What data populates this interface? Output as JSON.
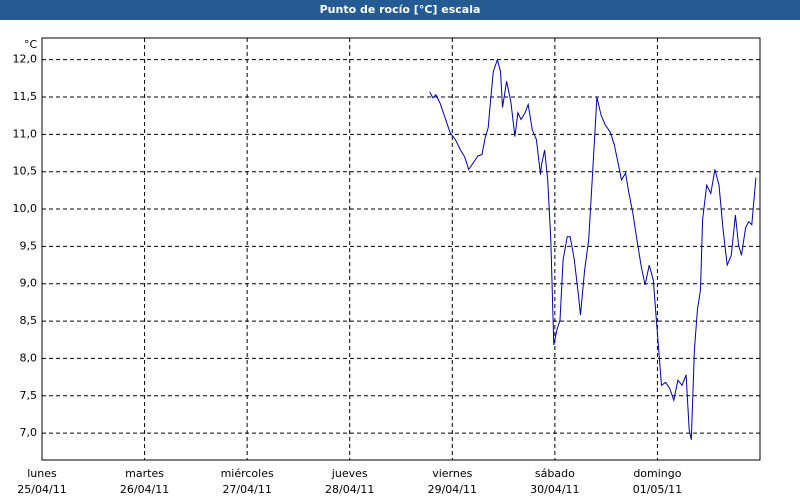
{
  "chart_data": {
    "type": "line",
    "title": "Punto de rocío [°C] escala",
    "y_unit": "°C",
    "x": [
      3.78,
      3.81,
      3.84,
      3.88,
      3.93,
      3.98,
      4.03,
      4.08,
      4.12,
      4.16,
      4.21,
      4.25,
      4.29,
      4.32,
      4.35,
      4.37,
      4.4,
      4.44,
      4.47,
      4.49,
      4.53,
      4.57,
      4.61,
      4.64,
      4.67,
      4.71,
      4.74,
      4.78,
      4.82,
      4.86,
      4.87,
      4.9,
      4.93,
      4.96,
      4.99,
      5.02,
      5.05,
      5.08,
      5.12,
      5.15,
      5.19,
      5.23,
      5.25,
      5.29,
      5.33,
      5.37,
      5.41,
      5.45,
      5.49,
      5.54,
      5.58,
      5.62,
      5.65,
      5.69,
      5.72,
      5.76,
      5.8,
      5.84,
      5.88,
      5.92,
      5.96,
      5.99,
      6.02,
      6.04,
      6.08,
      6.12,
      6.16,
      6.2,
      6.24,
      6.28,
      6.31,
      6.33,
      6.36,
      6.39,
      6.42,
      6.44,
      6.48,
      6.52,
      6.56,
      6.6,
      6.64,
      6.68,
      6.72,
      6.76,
      6.79,
      6.82,
      6.86,
      6.89,
      6.92,
      6.96
    ],
    "series": [
      {
        "color": "#0000aa",
        "values": [
          11.57,
          11.49,
          11.53,
          11.42,
          11.22,
          11.02,
          10.93,
          10.79,
          10.7,
          10.53,
          10.63,
          10.71,
          10.73,
          10.95,
          11.09,
          11.4,
          11.84,
          12.0,
          11.84,
          11.36,
          11.71,
          11.44,
          10.97,
          11.29,
          11.2,
          11.29,
          11.4,
          11.06,
          10.93,
          10.46,
          10.59,
          10.79,
          10.39,
          9.59,
          8.18,
          8.38,
          8.51,
          9.32,
          9.63,
          9.63,
          9.32,
          8.85,
          8.58,
          9.18,
          9.59,
          10.53,
          11.5,
          11.26,
          11.13,
          11.03,
          10.86,
          10.59,
          10.39,
          10.48,
          10.23,
          9.95,
          9.59,
          9.25,
          8.98,
          9.25,
          9.05,
          8.51,
          7.98,
          7.64,
          7.68,
          7.6,
          7.44,
          7.71,
          7.64,
          7.78,
          7.04,
          6.91,
          8.11,
          8.65,
          8.92,
          9.86,
          10.32,
          10.21,
          10.53,
          10.32,
          9.72,
          9.25,
          9.38,
          9.92,
          9.52,
          9.38,
          9.75,
          9.83,
          9.79,
          10.42
        ]
      }
    ],
    "xlim": [
      0,
      7
    ],
    "xticks": [
      {
        "value": 0,
        "label": "25/04/11"
      },
      {
        "value": 1,
        "label": "26/04/11"
      },
      {
        "value": 2,
        "label": "27/04/11"
      },
      {
        "value": 3,
        "label": "28/04/11"
      },
      {
        "value": 4,
        "label": "29/04/11"
      },
      {
        "value": 5,
        "label": "30/04/11"
      },
      {
        "value": 6,
        "label": "01/05/11"
      }
    ],
    "xtick_days": [
      "lunes",
      "martes",
      "miércoles",
      "jueves",
      "viernes",
      "sábado",
      "domingo"
    ],
    "ylim": [
      6.64,
      12.29
    ],
    "yticks": [
      {
        "value": 7,
        "label": "7,0"
      },
      {
        "value": 7.5,
        "label": "7,5"
      },
      {
        "value": 8,
        "label": "8,0"
      },
      {
        "value": 8.5,
        "label": "8,5"
      },
      {
        "value": 9,
        "label": "9,0"
      },
      {
        "value": 9.5,
        "label": "9,5"
      },
      {
        "value": 10,
        "label": "10,0"
      },
      {
        "value": 10.5,
        "label": "10,5"
      },
      {
        "value": 11,
        "label": "11,0"
      },
      {
        "value": 11.5,
        "label": "11,5"
      },
      {
        "value": 12,
        "label": "12,0"
      }
    ],
    "grid": true
  }
}
